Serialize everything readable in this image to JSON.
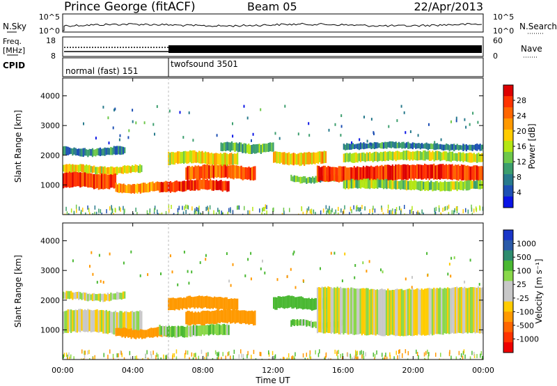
{
  "header": {
    "station": "Prince George (fitACF)",
    "beam": "Beam 05",
    "date": "22/Apr/2013"
  },
  "noise_panel": {
    "left_label": "N.Sky",
    "right_label": "N.Search",
    "left_ticks": [
      "10^5",
      "10^0"
    ],
    "right_ticks": [
      "10^5",
      "10^0"
    ]
  },
  "freq_panel": {
    "left_label_1": "Freq.",
    "left_label_2": "[MHz]",
    "right_label": "Nave",
    "left_ticks": [
      "18",
      "8"
    ],
    "right_ticks": [
      "60",
      "0"
    ]
  },
  "cpid_panel": {
    "label": "CPID",
    "segments": [
      {
        "label": "normal (fast) 151",
        "start_hour": 0,
        "end_hour": 6
      },
      {
        "label": "twofsound 3501",
        "start_hour": 6,
        "end_hour": 24
      }
    ]
  },
  "power_colorbar": {
    "label": "Power [dB]",
    "ticks": [
      "28",
      "24",
      "20",
      "16",
      "12",
      "8",
      "4"
    ],
    "colors": [
      "#dd0000",
      "#ff3300",
      "#ff6600",
      "#ff9900",
      "#ffcc00",
      "#b4e614",
      "#6ec84b",
      "#3c9e6e",
      "#287a8c",
      "#1e50b4",
      "#0a14e6"
    ]
  },
  "velocity_colorbar": {
    "label": "Velocity [m s⁻¹]",
    "ticks": [
      "1000",
      "500",
      "100",
      "25",
      "-25",
      "-100",
      "-500",
      "-1000"
    ],
    "colors": [
      "#1a36c8",
      "#2a5aa8",
      "#2e8c6e",
      "#4ab832",
      "#8ad84a",
      "#c8c8c8",
      "#c8c8c8",
      "#ffcc00",
      "#ff9900",
      "#ff6600",
      "#ff3300",
      "#ee0000"
    ]
  },
  "x_axis": {
    "title": "Time UT",
    "ticks": [
      "00:00",
      "04:00",
      "08:00",
      "12:00",
      "16:00",
      "20:00",
      "00:00"
    ]
  },
  "chart_data": [
    {
      "type": "heatmap",
      "title": "Power",
      "ylabel": "Slant Range [km]",
      "xlabel": "Time UT",
      "xlim": [
        0,
        24
      ],
      "ylim": [
        0,
        4600
      ],
      "yticks": [
        "1000",
        "2000",
        "3000",
        "4000"
      ],
      "colorbar": {
        "label": "Power [dB]",
        "range": [
          0,
          32
        ]
      },
      "bands": [
        {
          "x0": 0.0,
          "x1": 3.0,
          "r0": 900,
          "r1": 1400,
          "value": 28
        },
        {
          "x0": 0.0,
          "x1": 4.5,
          "r0": 1400,
          "r1": 1650,
          "value": 18
        },
        {
          "x0": 0.0,
          "x1": 3.5,
          "r0": 2000,
          "r1": 2250,
          "value": 8
        },
        {
          "x0": 3.0,
          "x1": 6.0,
          "r0": 750,
          "r1": 1050,
          "value": 22
        },
        {
          "x0": 5.5,
          "x1": 9.5,
          "r0": 800,
          "r1": 1150,
          "value": 28
        },
        {
          "x0": 7.0,
          "x1": 11.0,
          "r0": 1200,
          "r1": 1650,
          "value": 26
        },
        {
          "x0": 6.0,
          "x1": 10.0,
          "r0": 1700,
          "r1": 2100,
          "value": 18
        },
        {
          "x0": 9.0,
          "x1": 12.0,
          "r0": 2100,
          "r1": 2400,
          "value": 12
        },
        {
          "x0": 12.0,
          "x1": 15.0,
          "r0": 1700,
          "r1": 2100,
          "value": 20
        },
        {
          "x0": 13.0,
          "x1": 16.0,
          "r0": 1100,
          "r1": 1300,
          "value": 12
        },
        {
          "x0": 14.5,
          "x1": 24.0,
          "r0": 1150,
          "r1": 1650,
          "value": 28
        },
        {
          "x0": 16.0,
          "x1": 24.0,
          "r0": 1800,
          "r1": 2100,
          "value": 16
        },
        {
          "x0": 16.0,
          "x1": 24.0,
          "r0": 2200,
          "r1": 2400,
          "value": 8
        },
        {
          "x0": 16.0,
          "x1": 24.0,
          "r0": 850,
          "r1": 1150,
          "value": 14
        }
      ]
    },
    {
      "type": "heatmap",
      "title": "Velocity",
      "ylabel": "Slant Range [km]",
      "xlabel": "Time UT",
      "xlim": [
        0,
        24
      ],
      "ylim": [
        0,
        4600
      ],
      "yticks": [
        "1000",
        "2000",
        "3000",
        "4000"
      ],
      "colorbar": {
        "label": "Velocity [m s⁻¹]",
        "range": [
          -1000,
          1000
        ]
      },
      "bands": [
        {
          "x0": 0.0,
          "x1": 4.5,
          "r0": 900,
          "r1": 1650,
          "value": 0
        },
        {
          "x0": 0.0,
          "x1": 3.5,
          "r0": 2000,
          "r1": 2250,
          "value": 0
        },
        {
          "x0": 3.0,
          "x1": 6.0,
          "r0": 750,
          "r1": 1050,
          "value": -300
        },
        {
          "x0": 5.5,
          "x1": 9.5,
          "r0": 800,
          "r1": 1150,
          "value": 80
        },
        {
          "x0": 7.0,
          "x1": 11.0,
          "r0": 1200,
          "r1": 1650,
          "value": -300
        },
        {
          "x0": 6.0,
          "x1": 10.0,
          "r0": 1700,
          "r1": 2100,
          "value": -200
        },
        {
          "x0": 12.0,
          "x1": 15.0,
          "r0": 1700,
          "r1": 2100,
          "value": 300
        },
        {
          "x0": 13.0,
          "x1": 16.0,
          "r0": 1100,
          "r1": 1300,
          "value": 80
        },
        {
          "x0": 14.5,
          "x1": 24.0,
          "r0": 850,
          "r1": 2400,
          "value": 0
        }
      ]
    }
  ]
}
